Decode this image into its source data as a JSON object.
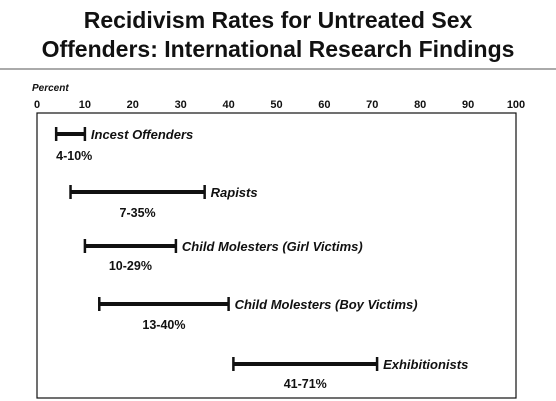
{
  "chart_data": {
    "type": "range-bar",
    "title_lines": [
      "Recidivism Rates for Untreated  Sex",
      "Offenders:  International Research Findings"
    ],
    "unit_label": "Percent",
    "xlim": [
      0,
      100
    ],
    "xticks": [
      0,
      10,
      20,
      30,
      40,
      50,
      60,
      70,
      80,
      90,
      100
    ],
    "xtick_labels": [
      "0",
      "10",
      "20",
      "30",
      "40",
      "50",
      "60",
      "70",
      "80",
      "90",
      "100"
    ],
    "series": [
      {
        "name": "Incest Offenders",
        "low": 4,
        "high": 10,
        "range_label": "4-10%",
        "label_side": "left"
      },
      {
        "name": "Rapists",
        "low": 7,
        "high": 35,
        "range_label": "7-35%",
        "label_side": "center"
      },
      {
        "name": "Child Molesters (Girl Victims)",
        "low": 10,
        "high": 29,
        "range_label": "10-29%",
        "label_side": "center"
      },
      {
        "name": "Child Molesters (Boy Victims)",
        "low": 13,
        "high": 40,
        "range_label": "13-40%",
        "label_side": "center"
      },
      {
        "name": "Exhibitionists",
        "low": 41,
        "high": 71,
        "range_label": "41-71%",
        "label_side": "center"
      }
    ]
  }
}
